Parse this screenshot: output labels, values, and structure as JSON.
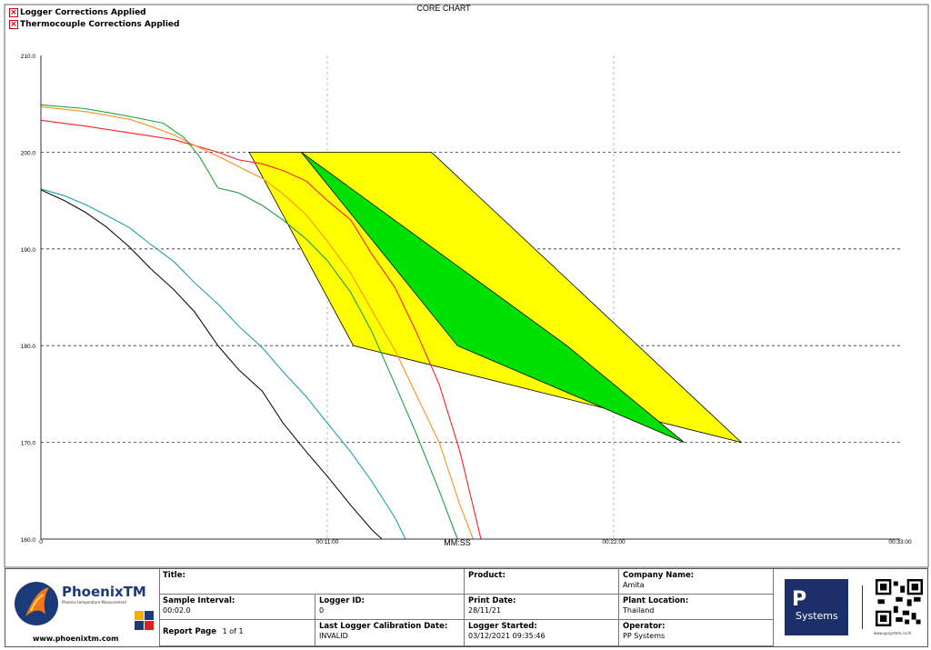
{
  "chart_data": {
    "type": "line",
    "title": "CORE CHART",
    "xlabel": "MM:SS",
    "ylabel": "",
    "xlim": [
      0,
      33
    ],
    "ylim": [
      160,
      210
    ],
    "y_ticks": [
      160,
      170,
      180,
      190,
      200,
      210
    ],
    "y_tick_labels": [
      "160.0",
      "170.0",
      "180.0",
      "190.0",
      "200.0",
      "210.0"
    ],
    "x_ticks": [
      0,
      11,
      22,
      33
    ],
    "x_tick_labels": [
      "0",
      "00:11:00",
      "00:22:00",
      "00:33:00"
    ],
    "grid": true,
    "series": [
      {
        "color": "#ff2020",
        "x": [
          0,
          1.7,
          3.4,
          5.1,
          6.8,
          7.6,
          8.5,
          9.3,
          10.2,
          11.0,
          11.9,
          12.7,
          13.6,
          14.4,
          15.3,
          16.1,
          16.5,
          16.9
        ],
        "y": [
          203.3,
          202.7,
          202.0,
          201.3,
          200.0,
          199.2,
          198.8,
          198.1,
          197.0,
          195.0,
          193.0,
          189.5,
          186.0,
          181.5,
          176.0,
          169.0,
          164.5,
          160.0
        ]
      },
      {
        "color": "#ff9020",
        "x": [
          0,
          1.7,
          3.4,
          4.2,
          5.1,
          5.9,
          6.8,
          7.6,
          8.5,
          9.3,
          10.2,
          11.0,
          11.9,
          12.7,
          13.6,
          14.4,
          15.3,
          16.1,
          16.6
        ],
        "y": [
          204.7,
          204.2,
          203.4,
          202.7,
          201.8,
          200.7,
          199.6,
          198.5,
          197.3,
          195.7,
          193.5,
          190.8,
          187.5,
          183.7,
          179.5,
          175.0,
          170.0,
          163.5,
          160.0
        ]
      },
      {
        "color": "#20a040",
        "x": [
          0,
          1.7,
          3.4,
          4.7,
          5.5,
          6.1,
          6.8,
          7.6,
          8.5,
          9.3,
          10.2,
          11.0,
          11.9,
          12.7,
          13.6,
          14.4,
          15.3,
          16.0
        ],
        "y": [
          204.9,
          204.5,
          203.7,
          203.0,
          201.5,
          199.5,
          196.3,
          195.8,
          194.5,
          193.0,
          191.0,
          188.8,
          185.5,
          181.5,
          176.0,
          171.0,
          165.0,
          160.0
        ]
      },
      {
        "color": "#20a0b0",
        "x": [
          0,
          0.9,
          1.7,
          2.5,
          3.4,
          4.2,
          5.1,
          5.9,
          6.8,
          7.6,
          8.5,
          9.3,
          10.2,
          11.0,
          11.9,
          12.7,
          13.6,
          14.0
        ],
        "y": [
          196.2,
          195.5,
          194.6,
          193.5,
          192.2,
          190.5,
          188.7,
          186.5,
          184.3,
          182.0,
          179.8,
          177.3,
          174.7,
          172.0,
          169.0,
          166.0,
          162.2,
          160.0
        ]
      },
      {
        "color": "#101010",
        "x": [
          0,
          0.9,
          1.7,
          2.5,
          3.4,
          4.2,
          5.1,
          5.9,
          6.8,
          7.6,
          8.5,
          9.3,
          10.2,
          11.0,
          11.9,
          12.7,
          13.1
        ],
        "y": [
          196.1,
          195.0,
          193.8,
          192.3,
          190.2,
          188.0,
          185.8,
          183.5,
          180.0,
          177.5,
          175.3,
          172.0,
          169.0,
          166.5,
          163.5,
          161.0,
          160.0
        ]
      }
    ],
    "annotations": [
      {
        "kind": "polygon",
        "fill": "#ffff00",
        "points": [
          [
            8.0,
            200
          ],
          [
            15.0,
            200
          ],
          [
            26.9,
            170
          ],
          [
            12.0,
            180
          ]
        ]
      },
      {
        "kind": "polygon",
        "fill": "#00e000",
        "points": [
          [
            10.0,
            200
          ],
          [
            20.2,
            180
          ],
          [
            24.7,
            170
          ],
          [
            16.0,
            180
          ]
        ]
      }
    ],
    "legend": [
      "Logger Corrections Applied",
      "Thermocouple Corrections Applied"
    ]
  },
  "legend_items": [
    {
      "label": "Logger Corrections Applied",
      "icon": "red-x-checkbox-icon"
    },
    {
      "label": "Thermocouple Corrections Applied",
      "icon": "red-x-checkbox-icon"
    }
  ],
  "footer": {
    "company": "PhoenixTM",
    "tagline": "Phoenix temperature Measurement",
    "url": "www.phoenixtm.com",
    "title_label": "Title:",
    "product_label": "Product:",
    "company_name_label": "Company Name:",
    "company_name": "Amita",
    "sample_interval_label": "Sample Interval:",
    "sample_interval": "00:02.0",
    "logger_id_label": "Logger ID:",
    "logger_id": "0",
    "print_date_label": "Print Date:",
    "print_date": "28/11/21",
    "plant_location_label": "Plant Location:",
    "plant_location": "Thailand",
    "report_page_label": "Report Page",
    "report_page": "1 of 1",
    "calibration_label": "Last Logger Calibration Date:",
    "calibration": "INVALID",
    "logger_started_label": "Logger Started:",
    "logger_started": "03/12/2021 09:35:46",
    "operator_label": "Operator:",
    "operator": "PP Systems",
    "pp_logo_big": "P",
    "pp_logo_text": "Systems",
    "qr_caption": "www.ppsystem.co.th"
  }
}
